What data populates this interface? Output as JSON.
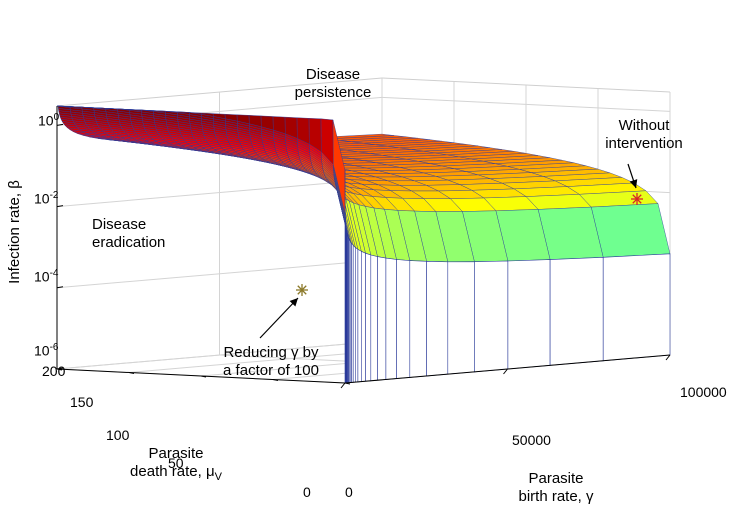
{
  "chart_data": {
    "type": "surface",
    "title": "",
    "xlabel": "Parasite birth rate, γ",
    "ylabel": "Parasite death rate, μ",
    "ylabel_sub": "V",
    "zlabel": "Infection rate, β",
    "zscale": "log",
    "xlim": [
      0,
      100000
    ],
    "ylim": [
      0,
      200
    ],
    "zlim": [
      1e-06,
      3
    ],
    "x_ticks": [
      "0",
      "50000",
      "100000"
    ],
    "y_ticks": [
      "0",
      "50",
      "100",
      "150",
      "200"
    ],
    "z_ticks": [
      {
        "base": "10",
        "exp": "0"
      },
      {
        "base": "10",
        "exp": "-2"
      },
      {
        "base": "10",
        "exp": "-4"
      },
      {
        "base": "10",
        "exp": "-6"
      }
    ],
    "grid": true,
    "colormap": "jet",
    "regions": [
      {
        "name": "persistence",
        "lines": [
          "Disease",
          "persistence"
        ]
      },
      {
        "name": "eradication",
        "lines": [
          "Disease",
          "eradication"
        ]
      }
    ],
    "annotations": [
      {
        "name": "without-intervention",
        "lines": [
          "Without",
          "intervention"
        ],
        "marker": "*",
        "color": "#d62728",
        "gamma": 100000,
        "mu": 20,
        "beta": 0.03
      },
      {
        "name": "reducing-gamma",
        "lines": [
          "Reducing γ by",
          "a factor of 100"
        ],
        "marker": "*",
        "color": "#8c7a2a",
        "gamma": 1000,
        "mu": 20,
        "beta": 0.0003
      }
    ],
    "surface_model": "beta = 0.35 * mu / gamma^0.55 (threshold between persistence and eradication)"
  }
}
